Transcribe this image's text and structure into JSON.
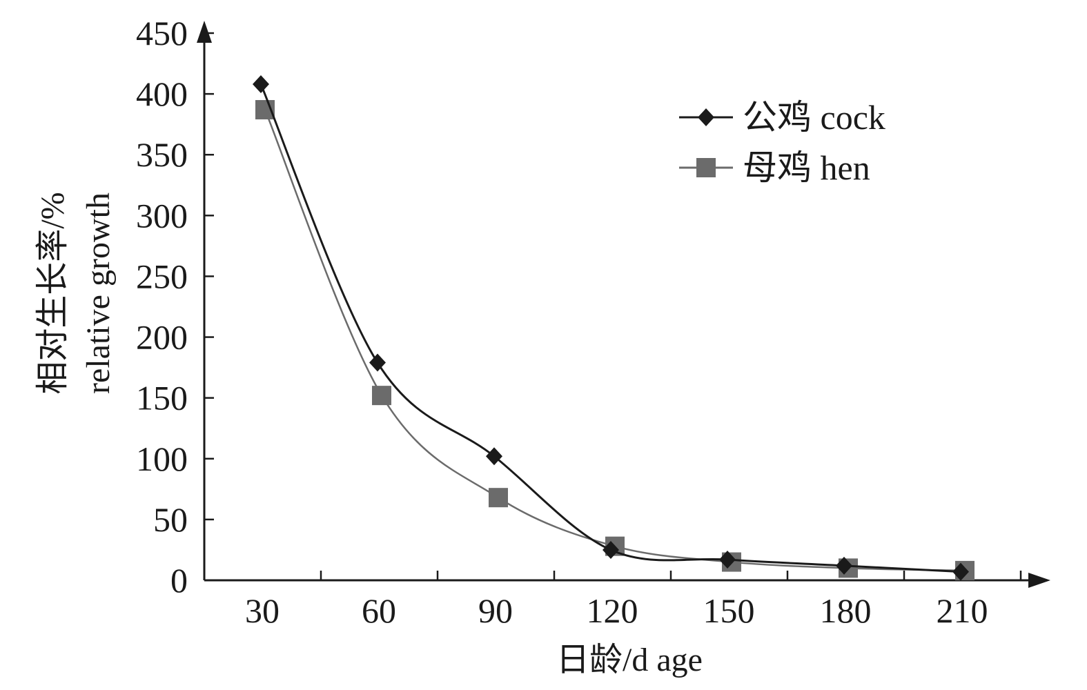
{
  "chart_data": {
    "type": "line",
    "title": "",
    "xlabel": "日龄/d age",
    "ylabel_line1": "相对生长率/%",
    "ylabel_line2": "relative growth",
    "x": [
      30,
      60,
      90,
      120,
      150,
      180,
      210
    ],
    "x_ticks": [
      "30",
      "60",
      "90",
      "120",
      "150",
      "180",
      "210"
    ],
    "y_ticks": [
      "0",
      "50",
      "100",
      "150",
      "200",
      "250",
      "300",
      "350",
      "400",
      "450"
    ],
    "ylim": [
      0,
      450
    ],
    "grid": false,
    "legend_position": "top-right",
    "series": [
      {
        "name": "公鸡 cock",
        "marker": "diamond",
        "color": "#1a1a1a",
        "values": [
          408,
          179,
          102,
          25,
          17,
          12,
          7
        ]
      },
      {
        "name": "母鸡 hen",
        "marker": "square",
        "color": "#6b6b6b",
        "values": [
          387,
          152,
          68,
          28,
          15,
          10,
          8
        ]
      }
    ]
  }
}
